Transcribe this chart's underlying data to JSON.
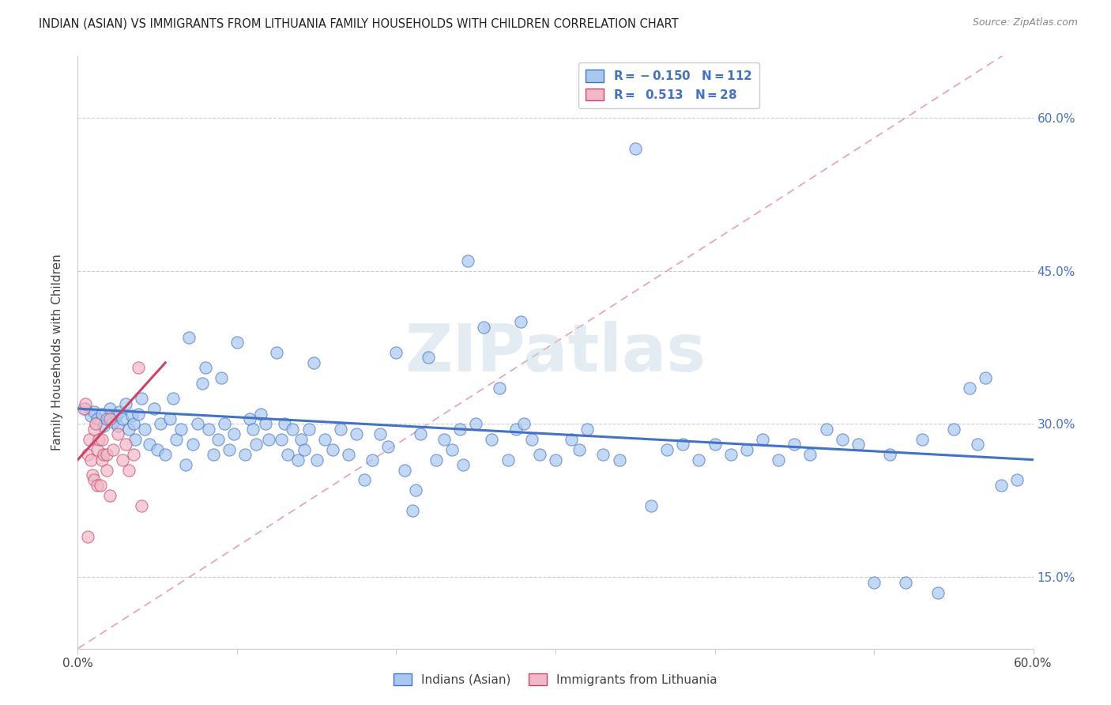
{
  "title": "INDIAN (ASIAN) VS IMMIGRANTS FROM LITHUANIA FAMILY HOUSEHOLDS WITH CHILDREN CORRELATION CHART",
  "source": "Source: ZipAtlas.com",
  "ylabel": "Family Households with Children",
  "xlim": [
    0.0,
    0.6
  ],
  "ylim": [
    0.08,
    0.66
  ],
  "yticks": [
    0.15,
    0.3,
    0.45,
    0.6
  ],
  "yticklabels": [
    "15.0%",
    "30.0%",
    "45.0%",
    "60.0%"
  ],
  "color_blue": "#a8c8f0",
  "color_pink": "#f0b8c8",
  "color_blue_line": "#4472c4",
  "color_pink_line": "#cc4466",
  "color_diag": "#e8a0b0",
  "watermark": "ZIPatlas",
  "blue_scatter": [
    [
      0.005,
      0.315
    ],
    [
      0.008,
      0.308
    ],
    [
      0.01,
      0.312
    ],
    [
      0.012,
      0.305
    ],
    [
      0.015,
      0.31
    ],
    [
      0.016,
      0.298
    ],
    [
      0.018,
      0.305
    ],
    [
      0.02,
      0.315
    ],
    [
      0.022,
      0.302
    ],
    [
      0.024,
      0.308
    ],
    [
      0.025,
      0.298
    ],
    [
      0.026,
      0.312
    ],
    [
      0.028,
      0.305
    ],
    [
      0.03,
      0.32
    ],
    [
      0.032,
      0.295
    ],
    [
      0.034,
      0.308
    ],
    [
      0.035,
      0.3
    ],
    [
      0.036,
      0.285
    ],
    [
      0.038,
      0.31
    ],
    [
      0.04,
      0.325
    ],
    [
      0.042,
      0.295
    ],
    [
      0.045,
      0.28
    ],
    [
      0.048,
      0.315
    ],
    [
      0.05,
      0.275
    ],
    [
      0.052,
      0.3
    ],
    [
      0.055,
      0.27
    ],
    [
      0.058,
      0.305
    ],
    [
      0.06,
      0.325
    ],
    [
      0.062,
      0.285
    ],
    [
      0.065,
      0.295
    ],
    [
      0.068,
      0.26
    ],
    [
      0.07,
      0.385
    ],
    [
      0.072,
      0.28
    ],
    [
      0.075,
      0.3
    ],
    [
      0.078,
      0.34
    ],
    [
      0.08,
      0.355
    ],
    [
      0.082,
      0.295
    ],
    [
      0.085,
      0.27
    ],
    [
      0.088,
      0.285
    ],
    [
      0.09,
      0.345
    ],
    [
      0.092,
      0.3
    ],
    [
      0.095,
      0.275
    ],
    [
      0.098,
      0.29
    ],
    [
      0.1,
      0.38
    ],
    [
      0.105,
      0.27
    ],
    [
      0.108,
      0.305
    ],
    [
      0.11,
      0.295
    ],
    [
      0.112,
      0.28
    ],
    [
      0.115,
      0.31
    ],
    [
      0.118,
      0.3
    ],
    [
      0.12,
      0.285
    ],
    [
      0.125,
      0.37
    ],
    [
      0.128,
      0.285
    ],
    [
      0.13,
      0.3
    ],
    [
      0.132,
      0.27
    ],
    [
      0.135,
      0.295
    ],
    [
      0.138,
      0.265
    ],
    [
      0.14,
      0.285
    ],
    [
      0.142,
      0.275
    ],
    [
      0.145,
      0.295
    ],
    [
      0.148,
      0.36
    ],
    [
      0.15,
      0.265
    ],
    [
      0.155,
      0.285
    ],
    [
      0.16,
      0.275
    ],
    [
      0.165,
      0.295
    ],
    [
      0.17,
      0.27
    ],
    [
      0.175,
      0.29
    ],
    [
      0.18,
      0.245
    ],
    [
      0.185,
      0.265
    ],
    [
      0.19,
      0.29
    ],
    [
      0.195,
      0.278
    ],
    [
      0.2,
      0.37
    ],
    [
      0.205,
      0.255
    ],
    [
      0.21,
      0.215
    ],
    [
      0.212,
      0.235
    ],
    [
      0.215,
      0.29
    ],
    [
      0.22,
      0.365
    ],
    [
      0.225,
      0.265
    ],
    [
      0.23,
      0.285
    ],
    [
      0.235,
      0.275
    ],
    [
      0.24,
      0.295
    ],
    [
      0.242,
      0.26
    ],
    [
      0.245,
      0.46
    ],
    [
      0.25,
      0.3
    ],
    [
      0.255,
      0.395
    ],
    [
      0.26,
      0.285
    ],
    [
      0.265,
      0.335
    ],
    [
      0.27,
      0.265
    ],
    [
      0.275,
      0.295
    ],
    [
      0.278,
      0.4
    ],
    [
      0.28,
      0.3
    ],
    [
      0.285,
      0.285
    ],
    [
      0.29,
      0.27
    ],
    [
      0.3,
      0.265
    ],
    [
      0.31,
      0.285
    ],
    [
      0.315,
      0.275
    ],
    [
      0.32,
      0.295
    ],
    [
      0.33,
      0.27
    ],
    [
      0.34,
      0.265
    ],
    [
      0.35,
      0.57
    ],
    [
      0.36,
      0.22
    ],
    [
      0.37,
      0.275
    ],
    [
      0.38,
      0.28
    ],
    [
      0.39,
      0.265
    ],
    [
      0.4,
      0.28
    ],
    [
      0.41,
      0.27
    ],
    [
      0.42,
      0.275
    ],
    [
      0.43,
      0.285
    ],
    [
      0.44,
      0.265
    ],
    [
      0.45,
      0.28
    ],
    [
      0.46,
      0.27
    ],
    [
      0.47,
      0.295
    ],
    [
      0.48,
      0.285
    ],
    [
      0.49,
      0.28
    ],
    [
      0.5,
      0.145
    ],
    [
      0.51,
      0.27
    ],
    [
      0.52,
      0.145
    ],
    [
      0.53,
      0.285
    ],
    [
      0.54,
      0.135
    ],
    [
      0.55,
      0.295
    ],
    [
      0.56,
      0.335
    ],
    [
      0.565,
      0.28
    ],
    [
      0.57,
      0.345
    ],
    [
      0.58,
      0.24
    ],
    [
      0.59,
      0.245
    ]
  ],
  "pink_scatter": [
    [
      0.004,
      0.315
    ],
    [
      0.005,
      0.32
    ],
    [
      0.006,
      0.27
    ],
    [
      0.007,
      0.285
    ],
    [
      0.008,
      0.265
    ],
    [
      0.009,
      0.25
    ],
    [
      0.01,
      0.295
    ],
    [
      0.01,
      0.245
    ],
    [
      0.011,
      0.3
    ],
    [
      0.012,
      0.275
    ],
    [
      0.012,
      0.24
    ],
    [
      0.013,
      0.285
    ],
    [
      0.014,
      0.24
    ],
    [
      0.015,
      0.285
    ],
    [
      0.015,
      0.265
    ],
    [
      0.016,
      0.27
    ],
    [
      0.018,
      0.27
    ],
    [
      0.018,
      0.255
    ],
    [
      0.02,
      0.305
    ],
    [
      0.02,
      0.23
    ],
    [
      0.022,
      0.275
    ],
    [
      0.025,
      0.29
    ],
    [
      0.028,
      0.265
    ],
    [
      0.03,
      0.28
    ],
    [
      0.032,
      0.255
    ],
    [
      0.035,
      0.27
    ],
    [
      0.038,
      0.355
    ],
    [
      0.04,
      0.22
    ],
    [
      0.006,
      0.19
    ]
  ],
  "blue_trendline": [
    [
      0.0,
      0.315
    ],
    [
      0.6,
      0.265
    ]
  ],
  "pink_trendline": [
    [
      0.0,
      0.265
    ],
    [
      0.055,
      0.36
    ]
  ],
  "diag_line": [
    [
      0.0,
      0.08
    ],
    [
      0.6,
      0.68
    ]
  ]
}
